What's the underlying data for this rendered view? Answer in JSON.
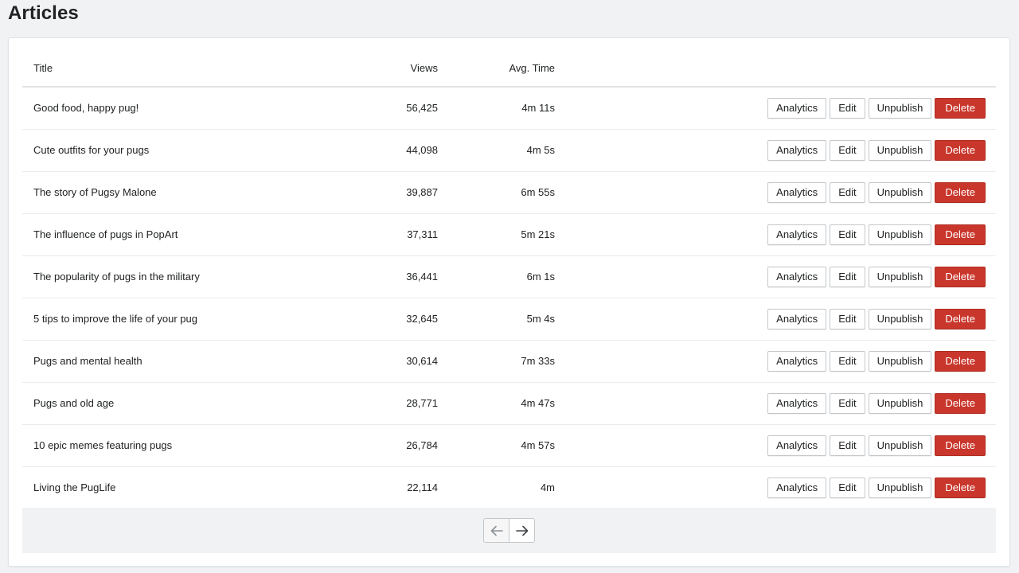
{
  "page": {
    "title": "Articles"
  },
  "table": {
    "headers": {
      "title": "Title",
      "views": "Views",
      "avg_time": "Avg. Time"
    },
    "rows": [
      {
        "title": "Good food, happy pug!",
        "views": "56,425",
        "avg_time": "4m 11s"
      },
      {
        "title": "Cute outfits for your pugs",
        "views": "44,098",
        "avg_time": "4m 5s"
      },
      {
        "title": "The story of Pugsy Malone",
        "views": "39,887",
        "avg_time": "6m 55s"
      },
      {
        "title": "The influence of pugs in PopArt",
        "views": "37,311",
        "avg_time": "5m 21s"
      },
      {
        "title": "The popularity of pugs in the military",
        "views": "36,441",
        "avg_time": "6m 1s"
      },
      {
        "title": "5 tips to improve the life of your pug",
        "views": "32,645",
        "avg_time": "5m 4s"
      },
      {
        "title": "Pugs and mental health",
        "views": "30,614",
        "avg_time": "7m 33s"
      },
      {
        "title": "Pugs and old age",
        "views": "28,771",
        "avg_time": "4m 47s"
      },
      {
        "title": "10 epic memes featuring pugs",
        "views": "26,784",
        "avg_time": "4m 57s"
      },
      {
        "title": "Living the PugLife",
        "views": "22,114",
        "avg_time": "4m"
      }
    ]
  },
  "actions": {
    "analytics": "Analytics",
    "edit": "Edit",
    "unpublish": "Unpublish",
    "delete": "Delete"
  },
  "pagination": {
    "prev_icon": "arrow-left-icon",
    "next_icon": "arrow-right-icon",
    "prev_disabled": true
  },
  "colors": {
    "background": "#f1f2f4",
    "delete_button": "#c9362b",
    "text": "#202223",
    "border": "#c4c7ca"
  }
}
